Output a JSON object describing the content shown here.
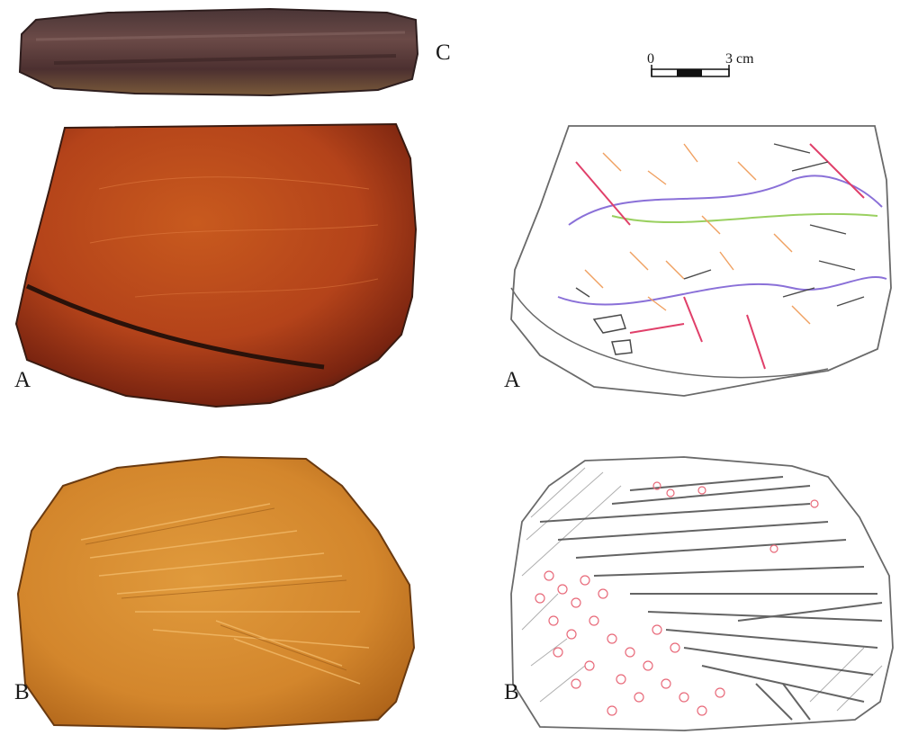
{
  "labels": {
    "photo_edge": "C",
    "photo_face_a": "A",
    "tracing_a": "A",
    "photo_face_b": "B",
    "tracing_b": "B"
  },
  "scale_bar": {
    "start": "0",
    "end": "3 cm"
  },
  "colors": {
    "stone_edge": "#5a3f3c",
    "stone_a": "#b5461c",
    "stone_b": "#d6892e",
    "outline": "#6a6a6a",
    "trace_dark": "#4a4a4a",
    "trace_red": "#e0406a",
    "trace_orange": "#f0a060",
    "trace_purple": "#8a70d8",
    "trace_green": "#9ad060",
    "pink_cluster": "#e86a7a"
  }
}
